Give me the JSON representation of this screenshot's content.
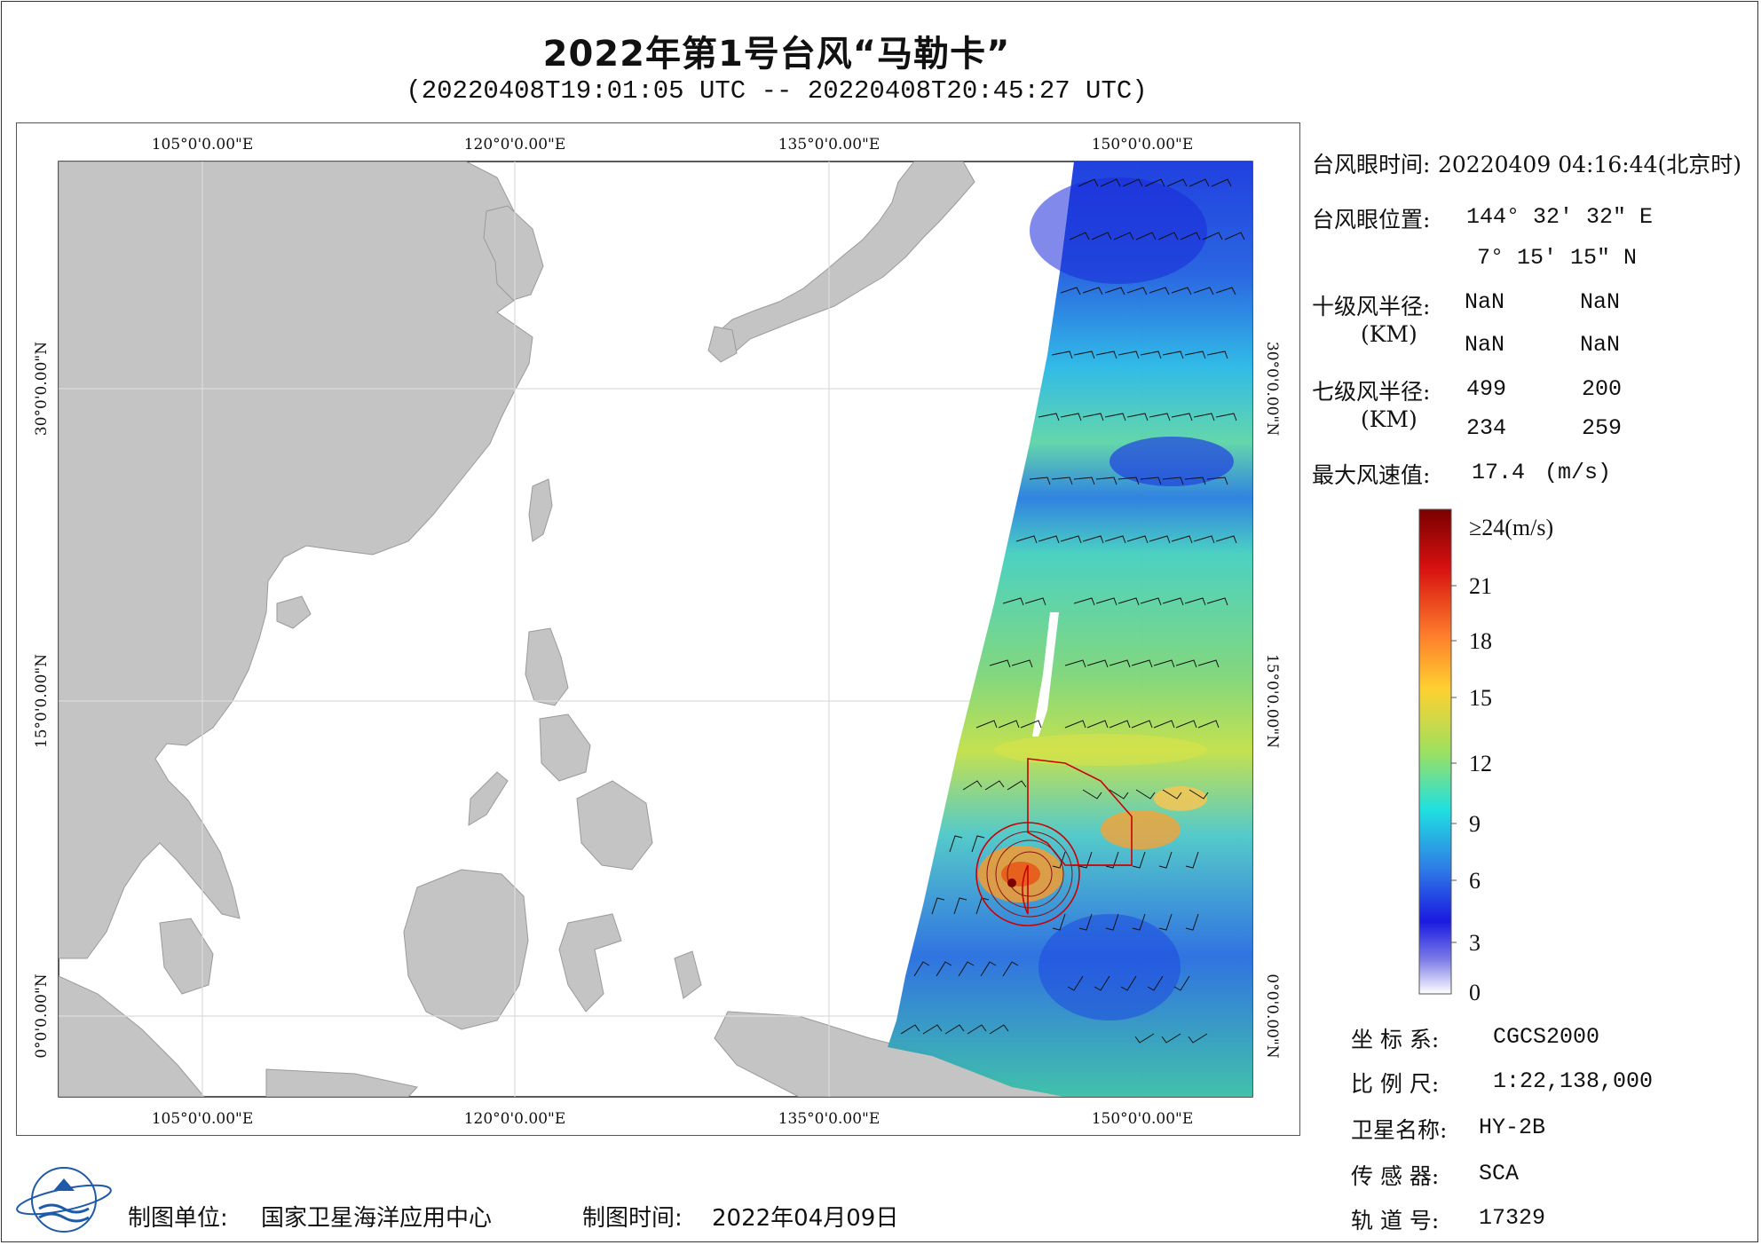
{
  "header": {
    "title": "2022年第1号台风“马勒卡”",
    "subtitle": "(20220408T19:01:05 UTC -- 20220408T20:45:27 UTC)"
  },
  "map": {
    "lon_labels": [
      "105°0'0.00\"E",
      "120°0'0.00\"E",
      "135°0'0.00\"E",
      "150°0'0.00\"E"
    ],
    "lat_labels": [
      "30°0'0.00\"N",
      "15°0'0.00\"N",
      "0°0'0.00\"N"
    ],
    "colors": {
      "land": "#c4c4c4",
      "sea": "#ffffff",
      "grid": "#d9d9d9",
      "wind_radius": "#cc0000",
      "barb": "#000000"
    }
  },
  "info": {
    "eye_time_label": "台风眼时间:",
    "eye_time_value": "20220409 04:16:44(北京时)",
    "eye_pos_label": "台风眼位置:",
    "eye_lon": "144° 32′ 32″ E",
    "eye_lat": "7° 15′ 15″ N",
    "r10_label": "十级风半径:",
    "r10_unit": "(KM)",
    "r10_values": [
      "NaN",
      "NaN",
      "NaN",
      "NaN"
    ],
    "r7_label": "七级风半径:",
    "r7_unit": "(KM)",
    "r7_values": [
      "499",
      "200",
      "234",
      "259"
    ],
    "max_wind_label": "最大风速值:",
    "max_wind_value": "17.4",
    "max_wind_unit": "(m/s)"
  },
  "colorbar": {
    "top_label": "≥24(m/s)",
    "tick_labels": [
      "21",
      "18",
      "15",
      "12",
      "9",
      "6",
      "3",
      "0"
    ],
    "stops": [
      "#7a0000",
      "#e31a1c",
      "#fd8d3c",
      "#fecb2f",
      "#a6d854",
      "#1fe0c8",
      "#2c7fb8",
      "#1a1adf",
      "#ffffff"
    ]
  },
  "meta": {
    "crs_label": "坐 标 系:",
    "crs_value": "CGCS2000",
    "scale_label": "比 例 尺:",
    "scale_value": "1:22,138,000",
    "satellite_label": "卫星名称:",
    "satellite_value": "HY-2B",
    "sensor_label": "传 感 器:",
    "sensor_value": "SCA",
    "orbit_label": "轨 道 号:",
    "orbit_value": "17329"
  },
  "footer": {
    "producer_label": "制图单位:",
    "producer_value": "国家卫星海洋应用中心",
    "date_label": "制图时间:",
    "date_value": "2022年04月09日"
  }
}
